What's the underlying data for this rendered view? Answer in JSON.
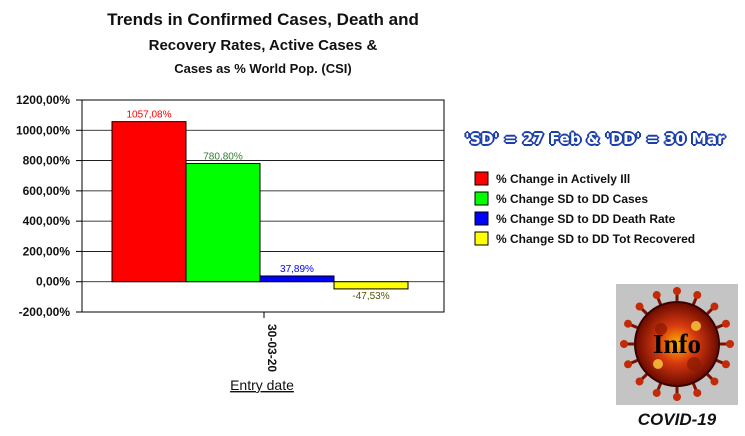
{
  "chart_data": {
    "type": "bar",
    "title_lines": [
      "Trends in Confirmed Cases, Death and",
      "Recovery Rates, Active Cases &",
      "Cases as % World Pop. (CSI)"
    ],
    "categories": [
      "30-03-20"
    ],
    "xlabel": "Entry date",
    "ylabel": "",
    "ylim": [
      -200,
      1200
    ],
    "y_ticks": [
      "1200,00%",
      "1000,00%",
      "800,00%",
      "600,00%",
      "400,00%",
      "200,00%",
      "0,00%",
      "-200,00%"
    ],
    "y_tick_values": [
      1200,
      1000,
      800,
      600,
      400,
      200,
      0,
      -200
    ],
    "grid": true,
    "legend_position": "right",
    "series": [
      {
        "name": "% Change in Actively Ill",
        "value": 1057.08,
        "label": "1057,08%",
        "color": "#ff0000",
        "label_color": "#ff0000"
      },
      {
        "name": "% Change SD to DD Cases",
        "value": 780.8,
        "label": "780,80%",
        "color": "#00ff00",
        "label_color": "#2e7d2e"
      },
      {
        "name": "% Change SD to DD Death Rate",
        "value": 37.89,
        "label": "37,89%",
        "color": "#0000ff",
        "label_color": "#0000ff"
      },
      {
        "name": "% Change SD to DD Tot Recovered",
        "value": -47.53,
        "label": "-47,53%",
        "color": "#ffff00",
        "label_color": "#555500"
      }
    ]
  },
  "note": "'SD' = 27 Feb & 'DD' = 30 Mar",
  "logo": {
    "text": "Info",
    "caption": "COVID-19",
    "icon": "virus-icon"
  }
}
